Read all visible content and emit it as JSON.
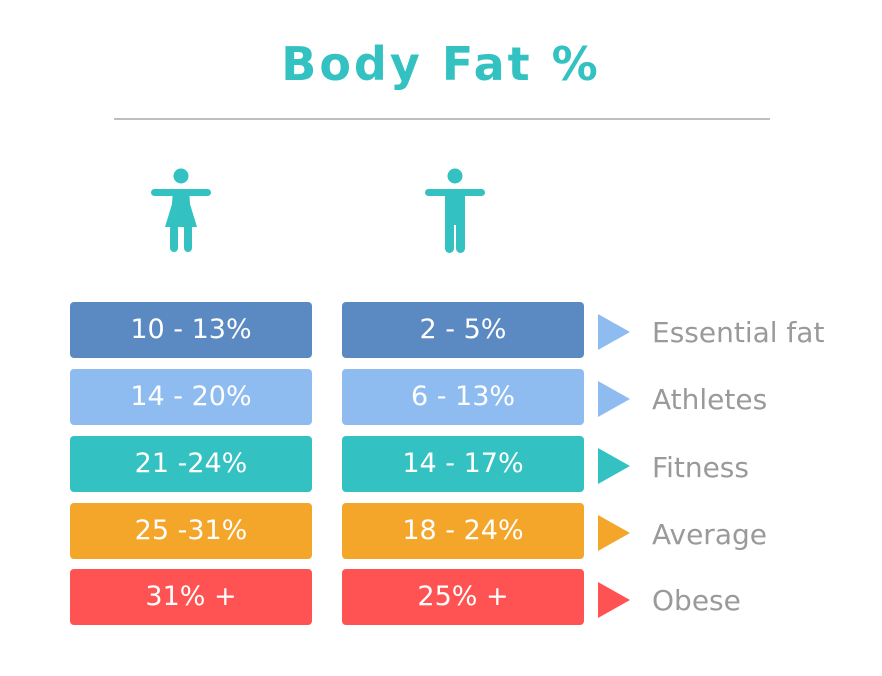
{
  "title": "Body Fat %",
  "icons": {
    "female": "female-figure-icon",
    "male": "male-figure-icon",
    "arrow": "triangle-right-icon"
  },
  "colors": {
    "title": "#33C1C1",
    "figure": "#33C1C1",
    "label": "#9A9A9A",
    "divider": "#BFBFBF"
  },
  "rows": [
    {
      "category": "Essential fat",
      "women": "10 - 13%",
      "men": "2 - 5%",
      "color": "#5B8AC3",
      "arrow_color": "#8FBCF0"
    },
    {
      "category": "Athletes",
      "women": "14 - 20%",
      "men": "6 - 13%",
      "color": "#8FBCF0",
      "arrow_color": "#8FBCF0"
    },
    {
      "category": "Fitness",
      "women": "21 -24%",
      "men": "14 - 17%",
      "color": "#33C1C1",
      "arrow_color": "#33C1C1"
    },
    {
      "category": "Average",
      "women": "25 -31%",
      "men": "18 - 24%",
      "color": "#F4A62A",
      "arrow_color": "#F4A62A"
    },
    {
      "category": "Obese",
      "women": "31% +",
      "men": "25% +",
      "color": "#FF5353",
      "arrow_color": "#FF5353"
    }
  ]
}
